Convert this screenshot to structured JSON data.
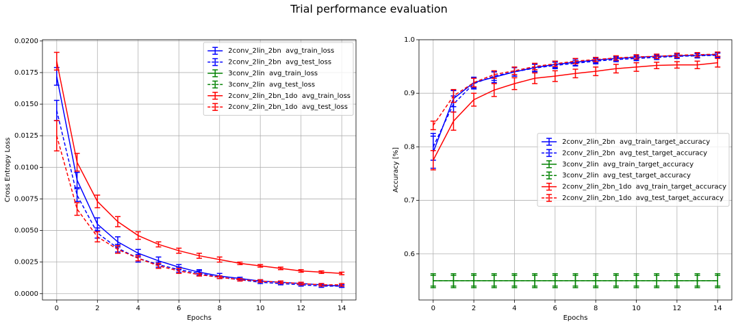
{
  "title": "Trial performance evaluation",
  "chart_data": [
    {
      "type": "line",
      "ylabel": "Cross Entropy Loss",
      "xlabel": "Epochs",
      "x": [
        0,
        1,
        2,
        3,
        4,
        5,
        6,
        7,
        8,
        9,
        10,
        11,
        12,
        13,
        14
      ],
      "xlim": [
        -0.7,
        14.7
      ],
      "xticks": [
        0,
        2,
        4,
        6,
        8,
        10,
        12,
        14
      ],
      "ylim": [
        -0.0005,
        0.0201
      ],
      "yticks": [
        {
          "value": 0,
          "label": "0.0000"
        },
        0.0025,
        {
          "value": 0.005,
          "label": "0.0050"
        },
        0.0075,
        {
          "value": 0.01,
          "label": "0.0100"
        },
        0.0125,
        {
          "value": 0.015,
          "label": "0.0150"
        },
        0.0175,
        {
          "value": 0.02,
          "label": "0.0200"
        }
      ],
      "grid": true,
      "legend": "upper right",
      "series": [
        {
          "name": "2conv_2lin_2bn  avg_train_loss",
          "color": "#0000ff",
          "linestyle": "solid",
          "values": [
            0.0172,
            0.009,
            0.0055,
            0.0041,
            0.0032,
            0.0026,
            0.0021,
            0.0017,
            0.0014,
            0.0012,
            0.001,
            0.0009,
            0.0008,
            0.0007,
            0.0006
          ],
          "errors": [
            0.0007,
            0.0006,
            0.0005,
            0.0004,
            0.0003,
            0.0003,
            0.0002,
            0.0002,
            0.0002,
            0.0001,
            0.0001,
            0.0001,
            0.0001,
            0.0001,
            0.0001
          ]
        },
        {
          "name": "2conv_2lin_2bn  avg_test_loss",
          "color": "#0000ff",
          "linestyle": "dashed",
          "values": [
            0.0145,
            0.0078,
            0.0048,
            0.0036,
            0.0028,
            0.0023,
            0.0019,
            0.0016,
            0.0013,
            0.0011,
            0.0009,
            0.0008,
            0.0007,
            0.0006,
            0.0006
          ],
          "errors": [
            0.0008,
            0.0005,
            0.0004,
            0.0003,
            0.0003,
            0.0002,
            0.0002,
            0.0002,
            0.0001,
            0.0001,
            0.0001,
            0.0001,
            0.0001,
            0.0001,
            0.0001
          ]
        },
        {
          "name": "3conv_2lin  avg_train_loss",
          "color": "#008000",
          "linestyle": "solid",
          "values": [
            null,
            null,
            null,
            null,
            null,
            null,
            null,
            null,
            null,
            null,
            null,
            null,
            null,
            null,
            null
          ],
          "errors": [
            null,
            null,
            null,
            null,
            null,
            null,
            null,
            null,
            null,
            null,
            null,
            null,
            null,
            null,
            null
          ]
        },
        {
          "name": "3conv_2lin  avg_test_loss",
          "color": "#008000",
          "linestyle": "dashed",
          "values": [
            null,
            null,
            null,
            null,
            null,
            null,
            null,
            null,
            null,
            null,
            null,
            null,
            null,
            null,
            null
          ],
          "errors": [
            null,
            null,
            null,
            null,
            null,
            null,
            null,
            null,
            null,
            null,
            null,
            null,
            null,
            null,
            null
          ]
        },
        {
          "name": "2conv_2lin_2bn_1do  avg_train_loss",
          "color": "#ff0000",
          "linestyle": "solid",
          "values": [
            0.0184,
            0.0104,
            0.0073,
            0.0057,
            0.0046,
            0.0039,
            0.0034,
            0.003,
            0.0027,
            0.0024,
            0.0022,
            0.002,
            0.0018,
            0.0017,
            0.0016
          ],
          "errors": [
            0.0007,
            0.0007,
            0.0005,
            0.0004,
            0.0003,
            0.0002,
            0.0002,
            0.0002,
            0.0002,
            0.0001,
            0.0001,
            0.0001,
            0.0001,
            0.0001,
            0.0001
          ]
        },
        {
          "name": "2conv_2lin_2bn_1do  avg_test_loss",
          "color": "#ff0000",
          "linestyle": "dashed",
          "values": [
            0.0125,
            0.0067,
            0.0045,
            0.0035,
            0.0028,
            0.0022,
            0.0018,
            0.0015,
            0.0013,
            0.0011,
            0.001,
            0.0009,
            0.0008,
            0.0007,
            0.0007
          ],
          "errors": [
            0.0012,
            0.0005,
            0.0004,
            0.0003,
            0.0002,
            0.0002,
            0.0002,
            0.0001,
            0.0001,
            0.0001,
            0.0001,
            0.0001,
            0.0001,
            0.0001,
            0.0001
          ]
        }
      ]
    },
    {
      "type": "line",
      "ylabel": "Accuracy [%]",
      "xlabel": "Epochs",
      "x": [
        0,
        1,
        2,
        3,
        4,
        5,
        6,
        7,
        8,
        9,
        10,
        11,
        12,
        13,
        14
      ],
      "xlim": [
        -0.7,
        14.7
      ],
      "xticks": [
        0,
        2,
        4,
        6,
        8,
        10,
        12,
        14
      ],
      "ylim": [
        0.514,
        1.0
      ],
      "yticks": [
        0.6,
        0.7,
        0.8,
        0.9,
        {
          "value": 1.0,
          "label": "1.0"
        }
      ],
      "grid": true,
      "legend": "center right",
      "series": [
        {
          "name": "2conv_2lin_2bn  avg_train_target_accuracy",
          "color": "#0000ff",
          "linestyle": "solid",
          "values": [
            0.79,
            0.89,
            0.92,
            0.93,
            0.94,
            0.948,
            0.954,
            0.958,
            0.962,
            0.965,
            0.967,
            0.969,
            0.97,
            0.971,
            0.972
          ],
          "errors": [
            0.03,
            0.015,
            0.01,
            0.01,
            0.008,
            0.007,
            0.006,
            0.006,
            0.005,
            0.004,
            0.004,
            0.004,
            0.004,
            0.004,
            0.004
          ]
        },
        {
          "name": "2conv_2lin_2bn  avg_test_target_accuracy",
          "color": "#0000ff",
          "linestyle": "dashed",
          "values": [
            0.8,
            0.88,
            0.918,
            0.932,
            0.94,
            0.947,
            0.952,
            0.956,
            0.96,
            0.963,
            0.965,
            0.967,
            0.969,
            0.97,
            0.971
          ],
          "errors": [
            0.025,
            0.015,
            0.01,
            0.008,
            0.008,
            0.007,
            0.006,
            0.005,
            0.005,
            0.004,
            0.004,
            0.004,
            0.004,
            0.004,
            0.004
          ]
        },
        {
          "name": "3conv_2lin  avg_train_target_accuracy",
          "color": "#008000",
          "linestyle": "solid",
          "values": [
            0.55,
            0.55,
            0.55,
            0.55,
            0.55,
            0.55,
            0.55,
            0.55,
            0.55,
            0.55,
            0.55,
            0.55,
            0.55,
            0.55,
            0.55
          ],
          "errors": [
            0.013,
            0.013,
            0.013,
            0.013,
            0.013,
            0.013,
            0.013,
            0.013,
            0.013,
            0.013,
            0.013,
            0.013,
            0.013,
            0.013,
            0.013
          ]
        },
        {
          "name": "3conv_2lin  avg_test_target_accuracy",
          "color": "#008000",
          "linestyle": "dashed",
          "values": [
            0.55,
            0.55,
            0.55,
            0.55,
            0.55,
            0.55,
            0.55,
            0.55,
            0.55,
            0.55,
            0.55,
            0.55,
            0.55,
            0.55,
            0.55
          ],
          "errors": [
            0.01,
            0.01,
            0.01,
            0.01,
            0.01,
            0.01,
            0.01,
            0.01,
            0.01,
            0.01,
            0.01,
            0.01,
            0.01,
            0.01,
            0.01
          ]
        },
        {
          "name": "2conv_2lin_2bn_1do  avg_train_target_accuracy",
          "color": "#ff0000",
          "linestyle": "solid",
          "values": [
            0.775,
            0.848,
            0.888,
            0.906,
            0.918,
            0.928,
            0.932,
            0.937,
            0.941,
            0.946,
            0.949,
            0.952,
            0.953,
            0.953,
            0.957
          ],
          "errors": [
            0.018,
            0.017,
            0.012,
            0.012,
            0.011,
            0.01,
            0.01,
            0.008,
            0.008,
            0.008,
            0.008,
            0.006,
            0.006,
            0.007,
            0.008
          ]
        },
        {
          "name": "2conv_2lin_2bn_1do  avg_test_target_accuracy",
          "color": "#ff0000",
          "linestyle": "dashed",
          "values": [
            0.84,
            0.895,
            0.92,
            0.935,
            0.942,
            0.95,
            0.955,
            0.96,
            0.963,
            0.966,
            0.968,
            0.969,
            0.971,
            0.972,
            0.973
          ],
          "errors": [
            0.008,
            0.012,
            0.008,
            0.007,
            0.007,
            0.006,
            0.005,
            0.005,
            0.004,
            0.004,
            0.004,
            0.004,
            0.004,
            0.004,
            0.004
          ]
        }
      ]
    }
  ]
}
